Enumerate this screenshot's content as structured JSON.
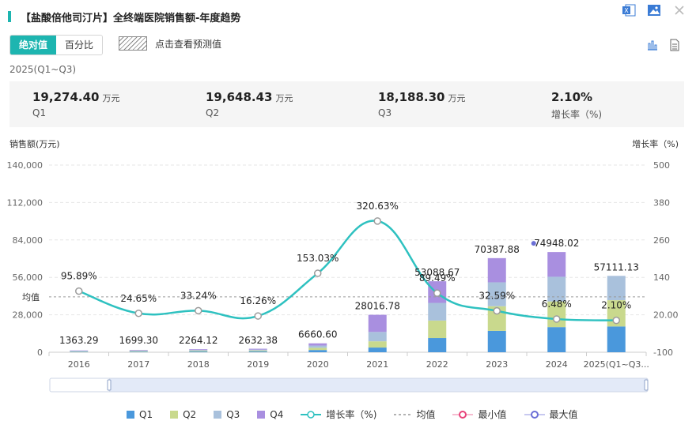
{
  "title": "【盐酸倍他司汀片】全终端医院销售额-年度趋势",
  "toolbar": {
    "icons": [
      "excel-icon",
      "image-icon",
      "close-icon"
    ],
    "toggle": [
      "绝对值",
      "百分比"
    ],
    "forecast_label": "点击查看预测值",
    "view_icons": [
      "bar-chart-icon",
      "table-icon"
    ]
  },
  "period": "2025(Q1~Q3)",
  "summary": [
    {
      "value": "19,274.40",
      "unit": "万元",
      "label": "Q1"
    },
    {
      "value": "19,648.43",
      "unit": "万元",
      "label": "Q2"
    },
    {
      "value": "18,188.30",
      "unit": "万元",
      "label": "Q3"
    },
    {
      "value": "2.10%",
      "unit": "",
      "label": "增长率（%)"
    }
  ],
  "colors": {
    "accent": "#1db5b0",
    "q1": "#4a98dc",
    "q2": "#c9d98d",
    "q3": "#a9c1dc",
    "q4": "#a98fe0",
    "growth": "#2ec1c0",
    "avg": "#999999",
    "min": "#e8437a",
    "max": "#6b6fd6"
  },
  "chart_data": {
    "type": "bar",
    "stacked": true,
    "categories": [
      "2016",
      "2017",
      "2018",
      "2019",
      "2020",
      "2021",
      "2022",
      "2023",
      "2024",
      "2025(Q1~Q3..."
    ],
    "series": [
      {
        "name": "Q1",
        "values": [
          341,
          425,
          566,
          658,
          1665,
          3504,
          10620,
          16000,
          18800,
          19274.4
        ]
      },
      {
        "name": "Q2",
        "values": [
          341,
          425,
          566,
          658,
          1665,
          4671,
          13080,
          18400,
          19200,
          19648.43
        ]
      },
      {
        "name": "Q3",
        "values": [
          341,
          425,
          566,
          658,
          1665,
          7004,
          13200,
          17900,
          18448,
          18188.3
        ]
      },
      {
        "name": "Q4",
        "values": [
          340.29,
          424.3,
          566.12,
          658.38,
          1665.6,
          12837.78,
          16188.67,
          18087.88,
          18500.02,
          0
        ]
      }
    ],
    "totals": [
      1363.29,
      1699.3,
      2264.12,
      2632.38,
      6660.6,
      28016.78,
      53088.67,
      70387.88,
      74948.02,
      57111.13
    ],
    "total_labels": [
      "1363.29",
      "1699.30",
      "2264.12",
      "2632.38",
      "6660.60",
      "28016.78",
      "53088.67",
      "70387.88",
      "74948.02",
      "57111.13"
    ],
    "growth": [
      95.89,
      24.65,
      33.24,
      16.26,
      153.03,
      320.63,
      89.49,
      32.59,
      6.48,
      2.1
    ],
    "growth_labels": [
      "95.89%",
      "24.65%",
      "33.24%",
      "16.26%",
      "153.03%",
      "320.63%",
      "89.49%",
      "32.59%",
      "6.48%",
      "2.10%"
    ],
    "avg_label": "均值",
    "ylabel": "销售额(万元)",
    "y2label": "增长率（%)",
    "ylim": [
      0,
      140000
    ],
    "yticks": [
      "0",
      "28,000",
      "56,000",
      "84,000",
      "112,000",
      "140,000"
    ],
    "y2lim": [
      -100,
      500
    ],
    "y2ticks": [
      "-100",
      "20.00",
      "140",
      "260",
      "380",
      "500"
    ],
    "legend": [
      "Q1",
      "Q2",
      "Q3",
      "Q4",
      "增长率（%)",
      "均值",
      "最小值",
      "最大值"
    ],
    "legend_placement": "bottom"
  }
}
